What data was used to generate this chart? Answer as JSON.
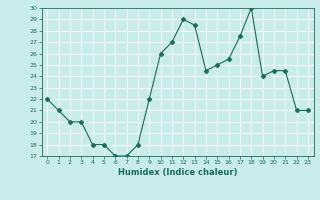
{
  "x": [
    0,
    1,
    2,
    3,
    4,
    5,
    6,
    7,
    8,
    9,
    10,
    11,
    12,
    13,
    14,
    15,
    16,
    17,
    18,
    19,
    20,
    21,
    22,
    23
  ],
  "y": [
    22,
    21,
    20,
    20,
    18,
    18,
    17,
    17,
    18,
    22,
    26,
    27,
    29,
    28.5,
    24.5,
    25,
    25.5,
    27.5,
    30,
    24,
    24.5,
    24.5,
    21,
    21
  ],
  "line_color": "#1a6b5a",
  "marker": "D",
  "marker_size": 2.5,
  "bg_color": "#c8ecec",
  "grid_color": "#ffffff",
  "xlabel": "Humidex (Indice chaleur)",
  "ylim": [
    17,
    30
  ],
  "xlim": [
    -0.5,
    23.5
  ],
  "yticks": [
    17,
    18,
    19,
    20,
    21,
    22,
    23,
    24,
    25,
    26,
    27,
    28,
    29,
    30
  ],
  "xticks": [
    0,
    1,
    2,
    3,
    4,
    5,
    6,
    7,
    8,
    9,
    10,
    11,
    12,
    13,
    14,
    15,
    16,
    17,
    18,
    19,
    20,
    21,
    22,
    23
  ]
}
